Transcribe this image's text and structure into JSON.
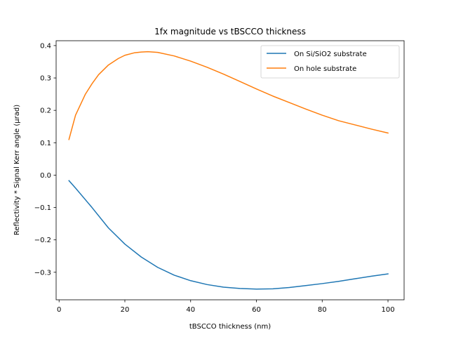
{
  "chart_data": {
    "type": "line",
    "title": "1fx magnitude vs tBSCCO thickness",
    "xlabel": "tBSCCO thickness (nm)",
    "ylabel": "Reflectivity * Signal Kerr angle (µrad)",
    "xlim": [
      -0.9,
      104.9
    ],
    "ylim": [
      -0.385,
      0.415
    ],
    "xticks": [
      0,
      20,
      40,
      60,
      80,
      100
    ],
    "yticks": [
      -0.3,
      -0.2,
      -0.1,
      0.0,
      0.1,
      0.2,
      0.3,
      0.4
    ],
    "xtick_labels": [
      "0",
      "20",
      "40",
      "60",
      "80",
      "100"
    ],
    "ytick_labels": [
      "−0.3",
      "−0.2",
      "−0.1",
      "0.0",
      "0.1",
      "0.2",
      "0.3",
      "0.4"
    ],
    "grid": false,
    "legend_position": "top-right",
    "series": [
      {
        "name": "On Si/SiO2 substrate",
        "color": "#1f77b4",
        "x": [
          3,
          5,
          10,
          15,
          20,
          25,
          30,
          35,
          40,
          45,
          50,
          55,
          60,
          65,
          70,
          75,
          80,
          85,
          90,
          95,
          100
        ],
        "y": [
          -0.017,
          -0.04,
          -0.1,
          -0.163,
          -0.213,
          -0.253,
          -0.285,
          -0.309,
          -0.326,
          -0.338,
          -0.346,
          -0.35,
          -0.352,
          -0.351,
          -0.347,
          -0.341,
          -0.335,
          -0.328,
          -0.32,
          -0.312,
          -0.305
        ]
      },
      {
        "name": "On hole substrate",
        "color": "#ff7f0e",
        "x": [
          3,
          5,
          8,
          10,
          12,
          15,
          18,
          20,
          23,
          25,
          27,
          30,
          35,
          40,
          45,
          50,
          55,
          60,
          65,
          70,
          75,
          80,
          85,
          90,
          95,
          100
        ],
        "y": [
          0.11,
          0.185,
          0.25,
          0.282,
          0.31,
          0.34,
          0.36,
          0.37,
          0.378,
          0.38,
          0.381,
          0.379,
          0.368,
          0.352,
          0.333,
          0.312,
          0.289,
          0.266,
          0.244,
          0.224,
          0.204,
          0.185,
          0.168,
          0.155,
          0.142,
          0.13
        ]
      }
    ]
  }
}
